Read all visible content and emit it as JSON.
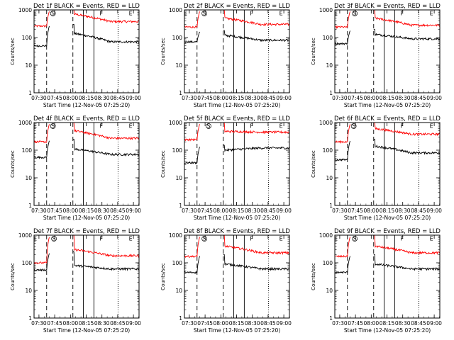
{
  "chart_data": {
    "type": "line",
    "ylabel": "Counts/sec",
    "xlabel": "Start Time (12-Nov-05 07:25:20)",
    "x_ticks": [
      "07:30",
      "07:45",
      "08:00",
      "08:15",
      "08:30",
      "08:45",
      "09:00"
    ],
    "x_tick_minutes": [
      4.67,
      19.67,
      34.67,
      49.67,
      64.67,
      79.67,
      94.67
    ],
    "xlim_minutes": [
      0,
      100
    ],
    "y_scale": "log",
    "ylim": [
      1,
      1000
    ],
    "y_ticks": [
      "1",
      "10",
      "100",
      "1000"
    ],
    "y_tick_values": [
      1,
      10,
      100,
      1000
    ],
    "colors": {
      "events": "#000000",
      "lld": "#ff0000"
    },
    "legend_text": "BLACK = Events, RED = LLD",
    "panels": [
      {
        "title": "Det 1f BLACK = Events, RED = LLD",
        "markers": [
          {
            "label": "E",
            "t": 1
          },
          {
            "label": "S",
            "t": 18
          },
          {
            "label": "F",
            "t": 64
          },
          {
            "label": "E",
            "t": 92
          }
        ],
        "events": {
          "pre": 50,
          "burst": 300,
          "post_start": 140,
          "post_end": 70
        },
        "lld": {
          "pre": 260,
          "burst": 1000,
          "post_start": 700,
          "post_end": 380
        },
        "solid_lines": [
          47,
          57
        ],
        "dashed_lines": [
          12,
          37
        ],
        "dotted_lines": [
          80
        ]
      },
      {
        "title": "Det 2f BLACK = Events, RED = LLD",
        "markers": [
          {
            "label": "E",
            "t": 1
          },
          {
            "label": "S",
            "t": 19
          },
          {
            "label": "F",
            "t": 64
          },
          {
            "label": "E",
            "t": 92
          }
        ],
        "events": {
          "pre": 70,
          "burst": 180,
          "post_start": 120,
          "post_end": 80
        },
        "lld": {
          "pre": 240,
          "burst": 1000,
          "post_start": 500,
          "post_end": 300
        },
        "solid_lines": [
          47,
          57
        ],
        "dashed_lines": [
          12,
          37
        ],
        "dotted_lines": [
          80
        ]
      },
      {
        "title": "Det 3f BLACK = Events, RED = LLD",
        "markers": [
          {
            "label": "E",
            "t": 1
          },
          {
            "label": "S",
            "t": 19
          },
          {
            "label": "F",
            "t": 64
          },
          {
            "label": "E",
            "t": 92
          }
        ],
        "events": {
          "pre": 60,
          "burst": 200,
          "post_start": 130,
          "post_end": 90
        },
        "lld": {
          "pre": 240,
          "burst": 1000,
          "post_start": 500,
          "post_end": 280
        },
        "solid_lines": [
          47,
          57
        ],
        "dashed_lines": [
          12,
          37
        ],
        "dotted_lines": [
          80
        ]
      },
      {
        "title": "Det 4f BLACK = Events, RED = LLD",
        "markers": [
          {
            "label": "E",
            "t": 1
          },
          {
            "label": "S",
            "t": 18
          },
          {
            "label": "F",
            "t": 64
          },
          {
            "label": "E",
            "t": 92
          }
        ],
        "events": {
          "pre": 55,
          "burst": 250,
          "post_start": 110,
          "post_end": 70
        },
        "lld": {
          "pre": 200,
          "burst": 1000,
          "post_start": 500,
          "post_end": 270
        },
        "solid_lines": [
          47,
          57
        ],
        "dashed_lines": [
          12,
          37
        ],
        "dotted_lines": [
          80
        ]
      },
      {
        "title": "Det 5f BLACK = Events, RED = LLD",
        "markers": [
          {
            "label": "E",
            "t": 1
          },
          {
            "label": "S",
            "t": 23
          },
          {
            "label": "F",
            "t": 64
          },
          {
            "label": "E",
            "t": 92
          }
        ],
        "events": {
          "pre": 35,
          "burst": 150,
          "post_start": 100,
          "post_end": 120
        },
        "lld": {
          "pre": 240,
          "burst": 1000,
          "post_start": 480,
          "post_end": 450
        },
        "solid_lines": [
          47,
          57
        ],
        "dashed_lines": [
          12,
          37
        ],
        "dotted_lines": [
          80
        ]
      },
      {
        "title": "Det 6f BLACK = Events, RED = LLD",
        "markers": [
          {
            "label": "E",
            "t": 1
          },
          {
            "label": "S",
            "t": 18
          },
          {
            "label": "F",
            "t": 64
          },
          {
            "label": "E",
            "t": 92
          }
        ],
        "events": {
          "pre": 45,
          "burst": 250,
          "post_start": 140,
          "post_end": 80
        },
        "lld": {
          "pre": 200,
          "burst": 1000,
          "post_start": 600,
          "post_end": 380
        },
        "solid_lines": [
          47,
          57
        ],
        "dashed_lines": [
          12,
          37
        ],
        "dotted_lines": [
          80
        ]
      },
      {
        "title": "Det 7f BLACK = Events, RED = LLD",
        "markers": [
          {
            "label": "E",
            "t": 1
          },
          {
            "label": "S",
            "t": 19
          },
          {
            "label": "F",
            "t": 64
          },
          {
            "label": "E",
            "t": 92
          }
        ],
        "events": {
          "pre": 55,
          "burst": 250,
          "post_start": 80,
          "post_end": 60
        },
        "lld": {
          "pre": 100,
          "burst": 1000,
          "post_start": 300,
          "post_end": 180
        },
        "solid_lines": [
          47,
          57
        ],
        "dashed_lines": [
          12,
          37
        ],
        "dotted_lines": [
          80
        ]
      },
      {
        "title": "Det 8f BLACK = Events, RED = LLD",
        "markers": [
          {
            "label": "E",
            "t": 1
          },
          {
            "label": "S",
            "t": 19
          },
          {
            "label": "F",
            "t": 64
          },
          {
            "label": "E",
            "t": 92
          }
        ],
        "events": {
          "pre": 45,
          "burst": 200,
          "post_start": 90,
          "post_end": 60
        },
        "lld": {
          "pre": 170,
          "burst": 1000,
          "post_start": 400,
          "post_end": 230
        },
        "solid_lines": [
          47,
          57
        ],
        "dashed_lines": [
          12,
          37
        ],
        "dotted_lines": [
          80
        ]
      },
      {
        "title": "Det 9f BLACK = Events, RED = LLD",
        "markers": [
          {
            "label": "E",
            "t": 1
          },
          {
            "label": "S",
            "t": 19
          },
          {
            "label": "F",
            "t": 64
          },
          {
            "label": "E",
            "t": 92
          }
        ],
        "events": {
          "pre": 45,
          "burst": 200,
          "post_start": 90,
          "post_end": 60
        },
        "lld": {
          "pre": 170,
          "burst": 1000,
          "post_start": 400,
          "post_end": 230
        },
        "solid_lines": [
          47,
          57
        ],
        "dashed_lines": [
          12,
          37
        ],
        "dotted_lines": [
          80
        ]
      }
    ]
  }
}
